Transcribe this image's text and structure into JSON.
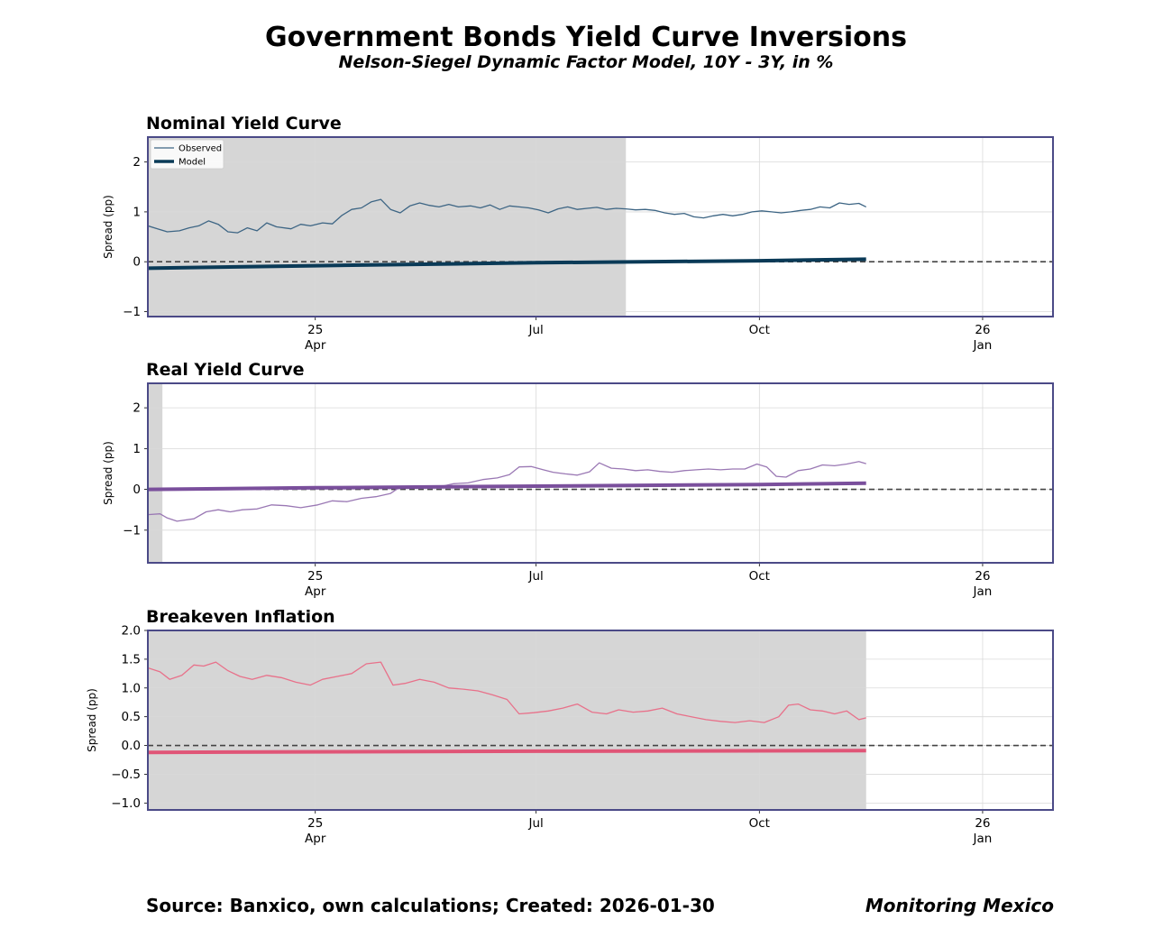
{
  "page": {
    "title": "Government Bonds Yield Curve Inversions",
    "subtitle": "Nelson-Siegel Dynamic Factor Model, 10Y - 3Y, in %",
    "source": "Source: Banxico, own calculations; Created: 2026-01-30",
    "brand": "Monitoring Mexico"
  },
  "colors": {
    "frame": "#4b4a87",
    "grid": "#d9d9d9",
    "shade": "#d6d6d6",
    "zero_line": "#444444",
    "nominal": "#3d6584",
    "nominal_model": "#0a3a57",
    "real": "#9a78b4",
    "real_model": "#7a4f9c",
    "breakeven": "#e8718a",
    "breakeven_model": "#e05577"
  },
  "x_ticks": [
    {
      "date": "2025-04-01",
      "label": "25\nApr"
    },
    {
      "date": "2025-07-01",
      "label": "Jul"
    },
    {
      "date": "2025-10-01",
      "label": "Oct"
    },
    {
      "date": "2026-01-01",
      "label": "26\nJan"
    }
  ],
  "chart_data": [
    {
      "type": "line",
      "title": "Nominal Yield Curve",
      "ylabel": "Spread (pp)",
      "xlim": [
        "2025-01-22",
        "2026-01-30"
      ],
      "ylim": [
        -1.1,
        2.5
      ],
      "yticks": [
        -1,
        0,
        1,
        2
      ],
      "grid": true,
      "legend": "top-left",
      "shaded_periods": [
        [
          "2025-01-22",
          "2025-08-07"
        ]
      ],
      "series": [
        {
          "name": "Observed",
          "role": "observed",
          "points": [
            [
              "2025-01-22",
              0.72
            ],
            [
              "2025-01-26",
              0.66
            ],
            [
              "2025-01-30",
              0.6
            ],
            [
              "2025-02-04",
              0.62
            ],
            [
              "2025-02-08",
              0.68
            ],
            [
              "2025-02-12",
              0.72
            ],
            [
              "2025-02-16",
              0.82
            ],
            [
              "2025-02-20",
              0.75
            ],
            [
              "2025-02-24",
              0.6
            ],
            [
              "2025-02-28",
              0.58
            ],
            [
              "2025-03-04",
              0.68
            ],
            [
              "2025-03-08",
              0.62
            ],
            [
              "2025-03-12",
              0.78
            ],
            [
              "2025-03-16",
              0.7
            ],
            [
              "2025-03-22",
              0.66
            ],
            [
              "2025-03-26",
              0.75
            ],
            [
              "2025-03-30",
              0.72
            ],
            [
              "2025-04-04",
              0.78
            ],
            [
              "2025-04-08",
              0.76
            ],
            [
              "2025-04-12",
              0.93
            ],
            [
              "2025-04-16",
              1.05
            ],
            [
              "2025-04-20",
              1.08
            ],
            [
              "2025-04-24",
              1.2
            ],
            [
              "2025-04-28",
              1.25
            ],
            [
              "2025-05-02",
              1.05
            ],
            [
              "2025-05-06",
              0.98
            ],
            [
              "2025-05-10",
              1.12
            ],
            [
              "2025-05-14",
              1.18
            ],
            [
              "2025-05-18",
              1.13
            ],
            [
              "2025-05-22",
              1.1
            ],
            [
              "2025-05-26",
              1.15
            ],
            [
              "2025-05-30",
              1.1
            ],
            [
              "2025-06-04",
              1.12
            ],
            [
              "2025-06-08",
              1.08
            ],
            [
              "2025-06-12",
              1.14
            ],
            [
              "2025-06-16",
              1.05
            ],
            [
              "2025-06-20",
              1.12
            ],
            [
              "2025-06-24",
              1.1
            ],
            [
              "2025-06-28",
              1.08
            ],
            [
              "2025-07-02",
              1.04
            ],
            [
              "2025-07-06",
              0.98
            ],
            [
              "2025-07-10",
              1.06
            ],
            [
              "2025-07-14",
              1.1
            ],
            [
              "2025-07-18",
              1.05
            ],
            [
              "2025-07-22",
              1.07
            ],
            [
              "2025-07-26",
              1.09
            ],
            [
              "2025-07-30",
              1.05
            ],
            [
              "2025-08-03",
              1.07
            ],
            [
              "2025-08-07",
              1.06
            ],
            [
              "2025-08-11",
              1.04
            ],
            [
              "2025-08-15",
              1.05
            ],
            [
              "2025-08-19",
              1.03
            ],
            [
              "2025-08-23",
              0.98
            ],
            [
              "2025-08-27",
              0.95
            ],
            [
              "2025-08-31",
              0.97
            ],
            [
              "2025-09-04",
              0.9
            ],
            [
              "2025-09-08",
              0.88
            ],
            [
              "2025-09-12",
              0.92
            ],
            [
              "2025-09-16",
              0.95
            ],
            [
              "2025-09-20",
              0.92
            ],
            [
              "2025-09-24",
              0.95
            ],
            [
              "2025-09-28",
              1.0
            ],
            [
              "2025-10-02",
              1.02
            ],
            [
              "2025-10-06",
              1.0
            ],
            [
              "2025-10-10",
              0.98
            ],
            [
              "2025-10-14",
              1.0
            ],
            [
              "2025-10-18",
              1.03
            ],
            [
              "2025-10-22",
              1.05
            ],
            [
              "2025-10-26",
              1.1
            ],
            [
              "2025-10-30",
              1.08
            ],
            [
              "2025-11-03",
              1.18
            ],
            [
              "2025-11-07",
              1.15
            ],
            [
              "2025-11-11",
              1.17
            ],
            [
              "2025-11-14",
              1.1
            ]
          ]
        },
        {
          "name": "Model",
          "role": "model",
          "points": [
            [
              "2025-01-22",
              -0.13
            ],
            [
              "2025-04-01",
              -0.08
            ],
            [
              "2025-07-01",
              -0.02
            ],
            [
              "2025-10-01",
              0.02
            ],
            [
              "2025-11-14",
              0.05
            ]
          ]
        }
      ]
    },
    {
      "type": "line",
      "title": "Real Yield Curve",
      "ylabel": "Spread (pp)",
      "xlim": [
        "2025-01-22",
        "2026-01-30"
      ],
      "ylim": [
        -1.8,
        2.6
      ],
      "yticks": [
        -1,
        0,
        1,
        2
      ],
      "grid": true,
      "shaded_periods": [
        [
          "2025-01-22",
          "2025-01-28"
        ]
      ],
      "series": [
        {
          "role": "observed",
          "points": [
            [
              "2025-01-22",
              -0.62
            ],
            [
              "2025-01-27",
              -0.6
            ],
            [
              "2025-01-30",
              -0.7
            ],
            [
              "2025-02-03",
              -0.78
            ],
            [
              "2025-02-10",
              -0.72
            ],
            [
              "2025-02-15",
              -0.55
            ],
            [
              "2025-02-20",
              -0.5
            ],
            [
              "2025-02-25",
              -0.55
            ],
            [
              "2025-03-02",
              -0.5
            ],
            [
              "2025-03-08",
              -0.48
            ],
            [
              "2025-03-14",
              -0.38
            ],
            [
              "2025-03-20",
              -0.4
            ],
            [
              "2025-03-26",
              -0.45
            ],
            [
              "2025-04-02",
              -0.38
            ],
            [
              "2025-04-08",
              -0.28
            ],
            [
              "2025-04-14",
              -0.3
            ],
            [
              "2025-04-20",
              -0.22
            ],
            [
              "2025-04-26",
              -0.18
            ],
            [
              "2025-05-02",
              -0.1
            ],
            [
              "2025-05-05",
              0.02
            ],
            [
              "2025-05-10",
              0.04
            ],
            [
              "2025-05-16",
              0.05
            ],
            [
              "2025-05-22",
              0.06
            ],
            [
              "2025-05-28",
              0.14
            ],
            [
              "2025-06-03",
              0.16
            ],
            [
              "2025-06-09",
              0.24
            ],
            [
              "2025-06-15",
              0.28
            ],
            [
              "2025-06-20",
              0.36
            ],
            [
              "2025-06-24",
              0.55
            ],
            [
              "2025-06-29",
              0.56
            ],
            [
              "2025-07-04",
              0.48
            ],
            [
              "2025-07-08",
              0.42
            ],
            [
              "2025-07-13",
              0.38
            ],
            [
              "2025-07-18",
              0.35
            ],
            [
              "2025-07-23",
              0.43
            ],
            [
              "2025-07-27",
              0.65
            ],
            [
              "2025-08-01",
              0.52
            ],
            [
              "2025-08-06",
              0.5
            ],
            [
              "2025-08-11",
              0.46
            ],
            [
              "2025-08-16",
              0.48
            ],
            [
              "2025-08-21",
              0.44
            ],
            [
              "2025-08-26",
              0.42
            ],
            [
              "2025-08-31",
              0.46
            ],
            [
              "2025-09-05",
              0.48
            ],
            [
              "2025-09-10",
              0.5
            ],
            [
              "2025-09-15",
              0.48
            ],
            [
              "2025-09-20",
              0.5
            ],
            [
              "2025-09-25",
              0.5
            ],
            [
              "2025-09-30",
              0.62
            ],
            [
              "2025-10-04",
              0.55
            ],
            [
              "2025-10-08",
              0.32
            ],
            [
              "2025-10-12",
              0.3
            ],
            [
              "2025-10-17",
              0.46
            ],
            [
              "2025-10-22",
              0.5
            ],
            [
              "2025-10-27",
              0.6
            ],
            [
              "2025-11-01",
              0.58
            ],
            [
              "2025-11-06",
              0.62
            ],
            [
              "2025-11-11",
              0.68
            ],
            [
              "2025-11-14",
              0.63
            ]
          ]
        },
        {
          "role": "model",
          "points": [
            [
              "2025-01-22",
              0.0
            ],
            [
              "2025-04-01",
              0.04
            ],
            [
              "2025-07-01",
              0.08
            ],
            [
              "2025-10-01",
              0.12
            ],
            [
              "2025-11-14",
              0.15
            ]
          ]
        }
      ]
    },
    {
      "type": "line",
      "title": "Breakeven Inflation",
      "ylabel": "Spread (pp)",
      "xlim": [
        "2025-01-22",
        "2026-01-30"
      ],
      "ylim": [
        -1.12,
        2.0
      ],
      "yticks": [
        -1.0,
        -0.5,
        0.0,
        0.5,
        1.0,
        1.5,
        2.0
      ],
      "grid": true,
      "shaded_periods": [
        [
          "2025-01-22",
          "2025-11-14"
        ]
      ],
      "series": [
        {
          "role": "observed",
          "points": [
            [
              "2025-01-22",
              1.35
            ],
            [
              "2025-01-27",
              1.28
            ],
            [
              "2025-01-31",
              1.15
            ],
            [
              "2025-02-05",
              1.22
            ],
            [
              "2025-02-10",
              1.4
            ],
            [
              "2025-02-14",
              1.38
            ],
            [
              "2025-02-19",
              1.45
            ],
            [
              "2025-02-24",
              1.3
            ],
            [
              "2025-03-01",
              1.2
            ],
            [
              "2025-03-06",
              1.15
            ],
            [
              "2025-03-12",
              1.22
            ],
            [
              "2025-03-18",
              1.18
            ],
            [
              "2025-03-24",
              1.1
            ],
            [
              "2025-03-30",
              1.05
            ],
            [
              "2025-04-04",
              1.15
            ],
            [
              "2025-04-10",
              1.2
            ],
            [
              "2025-04-16",
              1.25
            ],
            [
              "2025-04-22",
              1.42
            ],
            [
              "2025-04-28",
              1.45
            ],
            [
              "2025-05-03",
              1.05
            ],
            [
              "2025-05-08",
              1.08
            ],
            [
              "2025-05-14",
              1.15
            ],
            [
              "2025-05-20",
              1.1
            ],
            [
              "2025-05-26",
              1.0
            ],
            [
              "2025-06-01",
              0.98
            ],
            [
              "2025-06-07",
              0.95
            ],
            [
              "2025-06-13",
              0.88
            ],
            [
              "2025-06-19",
              0.8
            ],
            [
              "2025-06-24",
              0.55
            ],
            [
              "2025-06-30",
              0.57
            ],
            [
              "2025-07-06",
              0.6
            ],
            [
              "2025-07-12",
              0.65
            ],
            [
              "2025-07-18",
              0.72
            ],
            [
              "2025-07-24",
              0.58
            ],
            [
              "2025-07-30",
              0.55
            ],
            [
              "2025-08-04",
              0.62
            ],
            [
              "2025-08-10",
              0.58
            ],
            [
              "2025-08-16",
              0.6
            ],
            [
              "2025-08-22",
              0.65
            ],
            [
              "2025-08-28",
              0.55
            ],
            [
              "2025-09-03",
              0.5
            ],
            [
              "2025-09-09",
              0.45
            ],
            [
              "2025-09-15",
              0.42
            ],
            [
              "2025-09-21",
              0.4
            ],
            [
              "2025-09-27",
              0.43
            ],
            [
              "2025-10-03",
              0.4
            ],
            [
              "2025-10-09",
              0.5
            ],
            [
              "2025-10-13",
              0.7
            ],
            [
              "2025-10-17",
              0.72
            ],
            [
              "2025-10-22",
              0.62
            ],
            [
              "2025-10-27",
              0.6
            ],
            [
              "2025-11-01",
              0.55
            ],
            [
              "2025-11-06",
              0.6
            ],
            [
              "2025-11-11",
              0.45
            ],
            [
              "2025-11-14",
              0.48
            ]
          ]
        },
        {
          "role": "model",
          "points": [
            [
              "2025-01-22",
              -0.12
            ],
            [
              "2025-07-01",
              -0.1
            ],
            [
              "2025-11-14",
              -0.09
            ]
          ]
        }
      ]
    }
  ]
}
